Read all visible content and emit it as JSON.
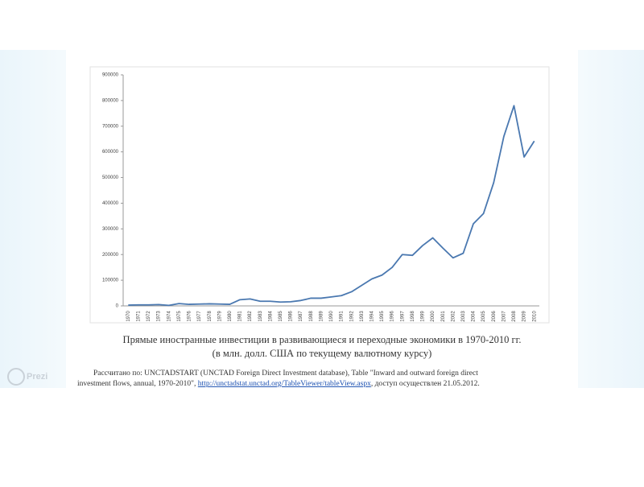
{
  "chart_data": {
    "type": "line",
    "categories": [
      "1970",
      "1971",
      "1972",
      "1973",
      "1974",
      "1975",
      "1976",
      "1977",
      "1978",
      "1979",
      "1980",
      "1981",
      "1982",
      "1983",
      "1984",
      "1985",
      "1986",
      "1987",
      "1988",
      "1989",
      "1990",
      "1991",
      "1992",
      "1993",
      "1994",
      "1995",
      "1996",
      "1997",
      "1998",
      "1999",
      "2000",
      "2001",
      "2002",
      "2003",
      "2004",
      "2005",
      "2006",
      "2007",
      "2008",
      "2009",
      "2010"
    ],
    "values": [
      3000,
      4000,
      4000,
      5000,
      2000,
      9000,
      6000,
      7000,
      8000,
      7000,
      6000,
      24000,
      27000,
      18000,
      18000,
      15000,
      16000,
      21000,
      30000,
      30000,
      35000,
      40000,
      55000,
      80000,
      105000,
      120000,
      150000,
      200000,
      197000,
      235000,
      265000,
      225000,
      187000,
      205000,
      320000,
      360000,
      480000,
      660000,
      780000,
      580000,
      642000
    ],
    "color": "#4a78b0",
    "ylim": [
      0,
      900000
    ],
    "yticks": [
      0,
      100000,
      200000,
      300000,
      400000,
      500000,
      600000,
      700000,
      800000,
      900000
    ],
    "grid": false
  },
  "caption": {
    "line1": "Прямые иностранные инвестиции в развивающиеся и переходные экономики в 1970-2010 гг.",
    "line2": "(в млн. долл. США по текущему валютному курсу)"
  },
  "source": {
    "line1": "Рассчитано по: UNCTADSTART (UNCTAD Foreign Direct Investment database), Table \"Inward and outward foreign direct",
    "line2_start": "investment flows, annual, 1970-2010\",",
    "link": "http://unctadstat.unctad.org/TableViewer/tableView.aspx",
    "line2_end": ", доступ осуществлен 21.05.2012."
  },
  "logo": "Prezi"
}
